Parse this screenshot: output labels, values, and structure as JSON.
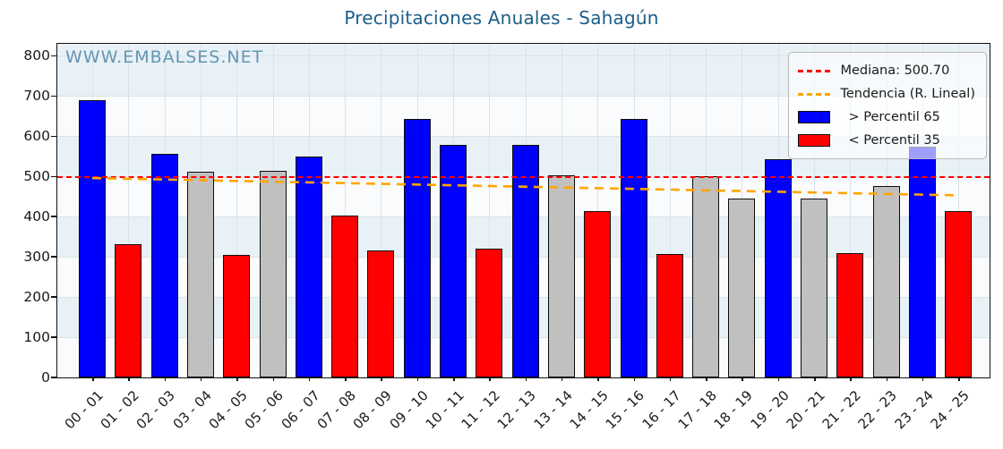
{
  "title": "Precipitaciones Anuales - Sahagún",
  "watermark": "WWW.EMBALSES.NET",
  "legend": {
    "median_label": "Mediana: 500.70",
    "trend_label": "Tendencia (R. Lineal)",
    "p65_label": "> Percentil 65",
    "p35_label": "< Percentil 35"
  },
  "colors": {
    "above_p65": "#0000FF",
    "below_p35": "#FF0000",
    "between": "#C0C0C0",
    "median_line": "#FF0000",
    "trend_line": "#FFA500",
    "title": "#1B5E8A",
    "watermark": "#4E86A8",
    "band_blue": "#E8F1F6",
    "band_white": "#FAFBFC"
  },
  "chart_data": {
    "type": "bar",
    "title": "Precipitaciones Anuales - Sahagún",
    "categories": [
      "00 - 01",
      "01 - 02",
      "02 - 03",
      "03 - 04",
      "04 - 05",
      "05 - 06",
      "06 - 07",
      "07 - 08",
      "08 - 09",
      "09 - 10",
      "10 - 11",
      "11 - 12",
      "12 - 13",
      "13 - 14",
      "14 - 15",
      "15 - 16",
      "16 - 17",
      "17 - 18",
      "18 - 19",
      "19 - 20",
      "20 - 21",
      "21 - 22",
      "22 - 23",
      "23 - 24",
      "24 - 25"
    ],
    "values": [
      690,
      332,
      557,
      511,
      305,
      513,
      549,
      403,
      317,
      643,
      578,
      320,
      578,
      503,
      415,
      643,
      306,
      501,
      445,
      543,
      445,
      310,
      476,
      574,
      415
    ],
    "bar_class": [
      "above",
      "below",
      "above",
      "mid",
      "below",
      "mid",
      "above",
      "below",
      "below",
      "above",
      "above",
      "below",
      "above",
      "mid",
      "below",
      "above",
      "below",
      "mid",
      "mid",
      "above",
      "mid",
      "below",
      "mid",
      "above",
      "below"
    ],
    "median": 500.7,
    "trend": {
      "start_value": 496,
      "end_value": 453
    },
    "xlabel": "",
    "ylabel": "",
    "ylim": [
      0,
      830
    ],
    "yticks": [
      0,
      100,
      200,
      300,
      400,
      500,
      600,
      700,
      800
    ],
    "grid": true,
    "legend_position": "upper-right"
  }
}
